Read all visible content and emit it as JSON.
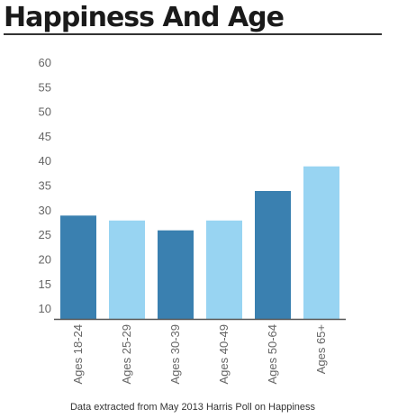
{
  "title": "Happiness And Age",
  "source_note": "Data extracted from May 2013 Harris Poll on Happiness",
  "colors": {
    "dark_bar": "#3a80b0",
    "light_bar": "#98d4f2",
    "axis": "#555555",
    "tick_text": "#666666"
  },
  "chart_data": {
    "type": "bar",
    "title": "Happiness And Age",
    "xlabel": "",
    "ylabel": "",
    "categories": [
      "Ages 18-24",
      "Ages 25-29",
      "Ages 30-39",
      "Ages 40-49",
      "Ages 50-64",
      "Ages 65+"
    ],
    "values": [
      29,
      28,
      26,
      28,
      34,
      39
    ],
    "ylim": [
      8,
      60
    ],
    "yticks": [
      10,
      15,
      20,
      25,
      30,
      35,
      40,
      45,
      50,
      55,
      60
    ],
    "grid": false,
    "legend": "none"
  }
}
